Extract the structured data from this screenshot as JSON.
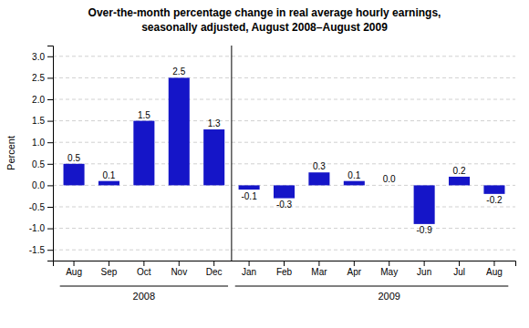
{
  "chart_data": {
    "type": "bar",
    "title": "Over-the-month percentage change in real average hourly earnings,",
    "subtitle": "seasonally adjusted, August 2008–August 2009",
    "y_label": "Percent",
    "categories": [
      "Aug",
      "Sep",
      "Oct",
      "Nov",
      "Dec",
      "Jan",
      "Feb",
      "Mar",
      "Apr",
      "May",
      "Jun",
      "Jul",
      "Aug"
    ],
    "values": [
      0.5,
      0.1,
      1.5,
      2.5,
      1.3,
      -0.1,
      -0.3,
      0.3,
      0.1,
      0.0,
      -0.9,
      0.2,
      -0.2
    ],
    "value_labels": [
      "0.5",
      "0.1",
      "1.5",
      "2.5",
      "1.3",
      "-0.1",
      "-0.3",
      "0.3",
      "0.1",
      "0.0",
      "-0.9",
      "0.2",
      "-0.2"
    ],
    "data_labels": true,
    "color": "#1515c8",
    "ylim": [
      -1.75,
      3.25
    ],
    "yticks": [
      -1.5,
      {
        "value": -1.0,
        "label": "-1.0"
      },
      -0.5,
      {
        "value": 0.0,
        "label": "0.0"
      },
      0.5,
      {
        "value": 1.0,
        "label": "1.0"
      },
      1.5,
      {
        "value": 2.0,
        "label": "2.0"
      },
      2.5,
      {
        "value": 3.0,
        "label": "3.0"
      }
    ],
    "grid": true,
    "annotations": [
      {
        "text": "2008",
        "x": 2.0
      },
      {
        "text": "2009",
        "x": 9.0
      },
      {
        "type": "vline",
        "x": 4.5
      }
    ]
  }
}
